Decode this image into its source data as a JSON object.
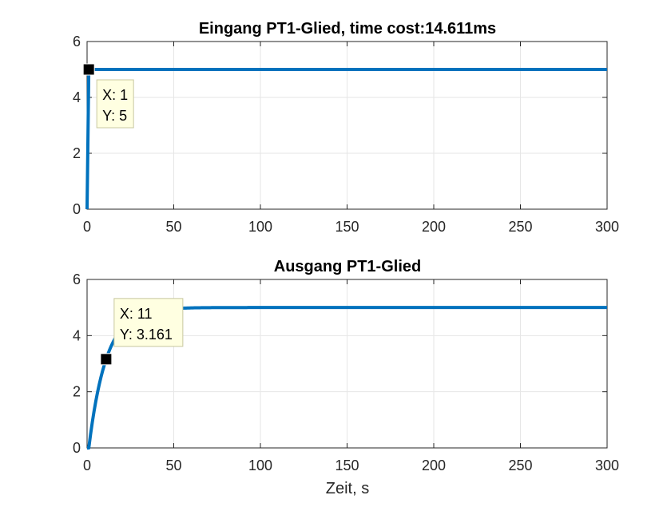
{
  "chart_data": [
    {
      "type": "line",
      "title": "Eingang PT1-Glied, time cost:14.611ms",
      "xlabel": "",
      "ylabel": "",
      "xlim": [
        0,
        300
      ],
      "ylim": [
        0,
        6
      ],
      "x_ticks": [
        "0",
        "50",
        "100",
        "150",
        "200",
        "250",
        "300"
      ],
      "y_ticks": [
        "0",
        "2",
        "4",
        "6"
      ],
      "grid": true,
      "series": [
        {
          "color": "#0072BD",
          "x": [
            0,
            1,
            300
          ],
          "y": [
            0,
            5,
            5
          ]
        }
      ],
      "datatip": {
        "x": 1,
        "y": 5,
        "x_text": "X: 1",
        "y_text": "Y: 5"
      }
    },
    {
      "type": "line",
      "title": "Ausgang PT1-Glied",
      "xlabel": "Zeit, s",
      "ylabel": "",
      "xlim": [
        0,
        300
      ],
      "ylim": [
        0,
        6
      ],
      "x_ticks": [
        "0",
        "50",
        "100",
        "150",
        "200",
        "250",
        "300"
      ],
      "y_ticks": [
        "0",
        "2",
        "4",
        "6"
      ],
      "grid": true,
      "series": [
        {
          "color": "#0072BD",
          "model": "first-order step response",
          "gain": 5,
          "time_constant": 10,
          "start": 1,
          "x_end": 300
        }
      ],
      "datatip": {
        "x": 11,
        "y": 3.161,
        "x_text": "X: 11",
        "y_text": "Y: 3.161"
      }
    }
  ],
  "colors": {
    "line": "#0072BD",
    "grid": "#e6e6e6",
    "axis": "#262626",
    "datatip_bg": "#ffffe1",
    "datatip_border": "#c8c8a0"
  }
}
